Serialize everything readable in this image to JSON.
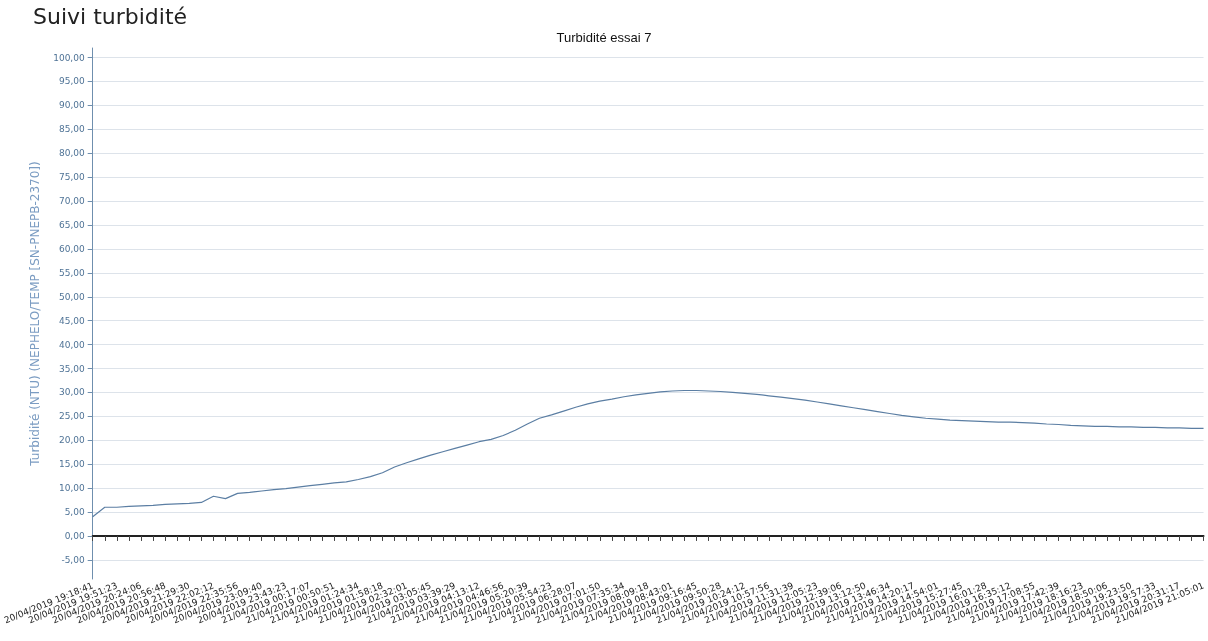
{
  "chart_data": {
    "type": "line",
    "title": "Suivi turbidité",
    "subtitle": "Turbidité essai 7",
    "ylabel": "Turbidité (NTU) (NEPHELO/TEMP [SN-PNEPB-2370])",
    "categories": [
      "20/04/2019 19:18:41",
      null,
      "20/04/2019 19:51:23",
      null,
      "20/04/2019 20:24:06",
      null,
      "20/04/2019 20:56:48",
      null,
      "20/04/2019 21:29:30",
      null,
      "20/04/2019 22:02:12",
      null,
      "20/04/2019 22:35:56",
      null,
      "20/04/2019 23:09:40",
      null,
      "20/04/2019 23:43:23",
      null,
      "21/04/2019 00:17:07",
      null,
      "21/04/2019 00:50:51",
      null,
      "21/04/2019 01:24:34",
      null,
      "21/04/2019 01:58:18",
      null,
      "21/04/2019 02:32:01",
      null,
      "21/04/2019 03:05:45",
      null,
      "21/04/2019 03:39:29",
      null,
      "21/04/2019 04:13:12",
      null,
      "21/04/2019 04:46:56",
      null,
      "21/04/2019 05:20:39",
      null,
      "21/04/2019 05:54:23",
      null,
      "21/04/2019 06:28:07",
      null,
      "21/04/2019 07:01:50",
      null,
      "21/04/2019 07:35:34",
      null,
      "21/04/2019 08:09:18",
      null,
      "21/04/2019 08:43:01",
      null,
      "21/04/2019 09:16:45",
      null,
      "21/04/2019 09:50:28",
      null,
      "21/04/2019 10:24:12",
      null,
      "21/04/2019 10:57:56",
      null,
      "21/04/2019 11:31:39",
      null,
      "21/04/2019 12:05:23",
      null,
      "21/04/2019 12:39:06",
      null,
      "21/04/2019 13:12:50",
      null,
      "21/04/2019 13:46:34",
      null,
      "21/04/2019 14:20:17",
      null,
      "21/04/2019 14:54:01",
      null,
      "21/04/2019 15:27:45",
      null,
      "21/04/2019 16:01:28",
      null,
      "21/04/2019 16:35:12",
      null,
      "21/04/2019 17:08:55",
      null,
      "21/04/2019 17:42:39",
      null,
      "21/04/2019 18:16:23",
      null,
      "21/04/2019 18:50:06",
      null,
      "21/04/2019 19:23:50",
      null,
      "21/04/2019 19:57:33",
      null,
      "21/04/2019 20:31:17",
      null,
      "21/04/2019 21:05:01"
    ],
    "series": [
      {
        "color": "#5b7ea3",
        "values": [
          4,
          6,
          6,
          6.2,
          6.3,
          6.4,
          6.6,
          6.7,
          6.8,
          7,
          8.3,
          7.8,
          8.9,
          9.1,
          9.4,
          9.7,
          9.9,
          10.2,
          10.5,
          10.8,
          11.1,
          11.3,
          11.8,
          12.4,
          13.2,
          14.4,
          15.3,
          16.1,
          16.9,
          17.6,
          18.3,
          19,
          19.7,
          20.2,
          21,
          22.1,
          23.4,
          24.6,
          25.3,
          26.1,
          26.9,
          27.6,
          28.2,
          28.6,
          29.1,
          29.5,
          29.8,
          30.1,
          30.3,
          30.4,
          30.4,
          30.3,
          30.2,
          30,
          29.8,
          29.6,
          29.3,
          29,
          28.7,
          28.4,
          28,
          27.6,
          27.2,
          26.8,
          26.4,
          26,
          25.6,
          25.2,
          24.9,
          24.6,
          24.4,
          24.2,
          24.1,
          24,
          23.9,
          23.8,
          23.8,
          23.7,
          23.6,
          23.4,
          23.3,
          23.1,
          23,
          22.9,
          22.9,
          22.8,
          22.8,
          22.7,
          22.7,
          22.6,
          22.6,
          22.5,
          22.5
        ]
      }
    ],
    "ylim": [
      -9,
      102
    ],
    "yticks": [
      {
        "value": -5,
        "label": "-5,00"
      },
      {
        "value": 0,
        "label": "0,00"
      },
      {
        "value": 5,
        "label": "5,00"
      },
      {
        "value": 10,
        "label": "10,00"
      },
      {
        "value": 15,
        "label": "15,00"
      },
      {
        "value": 20,
        "label": "20,00"
      },
      {
        "value": 25,
        "label": "25,00"
      },
      {
        "value": 30,
        "label": "30,00"
      },
      {
        "value": 35,
        "label": "35,00"
      },
      {
        "value": 40,
        "label": "40,00"
      },
      {
        "value": 45,
        "label": "45,00"
      },
      {
        "value": 50,
        "label": "50,00"
      },
      {
        "value": 55,
        "label": "55,00"
      },
      {
        "value": 60,
        "label": "60,00"
      },
      {
        "value": 65,
        "label": "65,00"
      },
      {
        "value": 70,
        "label": "70,00"
      },
      {
        "value": 75,
        "label": "75,00"
      },
      {
        "value": 80,
        "label": "80,00"
      },
      {
        "value": 85,
        "label": "85,00"
      },
      {
        "value": 90,
        "label": "90,00"
      },
      {
        "value": 95,
        "label": "95,00"
      },
      {
        "value": 100,
        "label": "100,00"
      }
    ],
    "grid": "y",
    "marker": "none",
    "line_style": "solid"
  }
}
